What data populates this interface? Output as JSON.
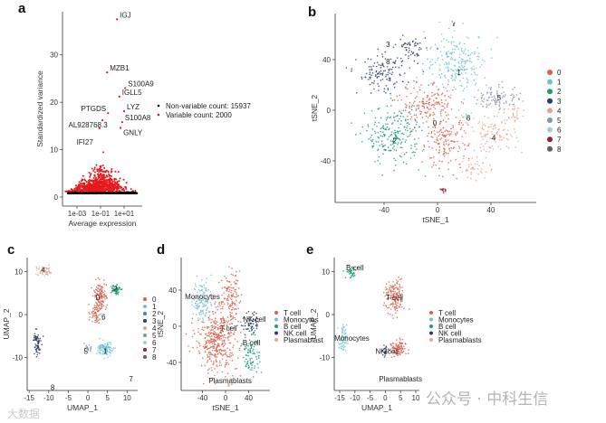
{
  "chart_data": [
    {
      "panel": "a",
      "type": "scatter",
      "xlabel": "Average expression",
      "ylabel": "Standardized variance",
      "xscale": "log10",
      "xlim": [
        -4.23,
        2.54
      ],
      "ylim": [
        -1.9,
        39.1
      ],
      "xticks": [
        {
          "v": -3,
          "label": "1e-03"
        },
        {
          "v": -1,
          "label": "1e-01"
        },
        {
          "v": 1,
          "label": "1e+01"
        }
      ],
      "yticks": [
        {
          "v": 0,
          "label": "0"
        },
        {
          "v": 10,
          "label": "10"
        },
        {
          "v": 20,
          "label": "20"
        },
        {
          "v": 30,
          "label": "30"
        }
      ],
      "legend": [
        {
          "label": "Non-variable count: 15937",
          "color": "#000000"
        },
        {
          "label": "Variable count: 2000",
          "color": "#e41a1c"
        }
      ],
      "legend_position": "right",
      "labeled_genes": [
        {
          "gene": "IGJ",
          "x": 0.4,
          "y": 37.5
        },
        {
          "gene": "MZB1",
          "x": -0.44,
          "y": 26.3
        },
        {
          "gene": "S100A9",
          "x": 1.1,
          "y": 23.0
        },
        {
          "gene": "IGLL5",
          "x": 0.6,
          "y": 21.2
        },
        {
          "gene": "LYZ",
          "x": 1.0,
          "y": 18.1
        },
        {
          "gene": "PTGDS",
          "x": -0.36,
          "y": 17.7
        },
        {
          "gene": "S100A8",
          "x": 0.84,
          "y": 15.8
        },
        {
          "gene": "AL928768.3",
          "x": -0.84,
          "y": 16.2
        },
        {
          "gene": "IFI27",
          "x": -1.1,
          "y": 14.5
        },
        {
          "gene": "GNLY",
          "x": 0.7,
          "y": 14.6
        }
      ]
    },
    {
      "panel": "b",
      "type": "scatter",
      "xlabel": "tSNE_1",
      "ylabel": "tSNE_2",
      "xlim": [
        -76.6,
        73.9
      ],
      "ylim": [
        -72.9,
        76.4
      ],
      "xticks": [
        {
          "v": -40,
          "label": "-40"
        },
        {
          "v": 0,
          "label": "0"
        },
        {
          "v": 40,
          "label": "40"
        }
      ],
      "yticks": [
        {
          "v": -40,
          "label": "-40"
        },
        {
          "v": 0,
          "label": "0"
        },
        {
          "v": 40,
          "label": "40"
        }
      ],
      "legend": [
        {
          "label": "0",
          "color": "#d6604d"
        },
        {
          "label": "1",
          "color": "#6cc3d5"
        },
        {
          "label": "2",
          "color": "#1b9e77"
        },
        {
          "label": "3",
          "color": "#2d3d6b"
        },
        {
          "label": "4",
          "color": "#e8a58c"
        },
        {
          "label": "5",
          "color": "#8a8fb5"
        },
        {
          "label": "6",
          "color": "#9ed3c9"
        },
        {
          "label": "7",
          "color": "#a01a24"
        },
        {
          "label": "8",
          "color": "#6b5a55"
        }
      ],
      "blobs": [
        {
          "g": 0,
          "x": -8,
          "y": 5,
          "sx": 13,
          "sy": 10,
          "n": 160
        },
        {
          "g": 0,
          "x": 5,
          "y": -25,
          "sx": 11,
          "sy": 14,
          "n": 170
        },
        {
          "g": 1,
          "x": 15,
          "y": 38,
          "sx": 15,
          "sy": 14,
          "n": 220
        },
        {
          "g": 2,
          "x": -33,
          "y": -20,
          "sx": 13,
          "sy": 14,
          "n": 220
        },
        {
          "g": 3,
          "x": -42,
          "y": 28,
          "sx": 11,
          "sy": 9,
          "n": 120
        },
        {
          "g": 3,
          "x": -20,
          "y": 48,
          "sx": 7,
          "sy": 8,
          "n": 60
        },
        {
          "g": 4,
          "x": 42,
          "y": -20,
          "sx": 11,
          "sy": 8,
          "n": 100
        },
        {
          "g": 4,
          "x": 28,
          "y": -45,
          "sx": 7,
          "sy": 6,
          "n": 40
        },
        {
          "g": 4,
          "x": 58,
          "y": -3,
          "sx": 5,
          "sy": 5,
          "n": 30
        },
        {
          "g": 5,
          "x": 45,
          "y": 10,
          "sx": 11,
          "sy": 6,
          "n": 90
        },
        {
          "g": 6,
          "x": 23,
          "y": -6,
          "sx": 2,
          "sy": 2,
          "n": 15
        },
        {
          "g": 7,
          "x": 5,
          "y": -63,
          "sx": 1.5,
          "sy": 1,
          "n": 12
        },
        {
          "g": 8,
          "x": 12,
          "y": 68,
          "sx": 1,
          "sy": 1,
          "n": 6
        }
      ],
      "cluster_labels": [
        {
          "label": "0",
          "x": -2,
          "y": -10
        },
        {
          "label": "1",
          "x": 16,
          "y": 30
        },
        {
          "label": "2",
          "x": -32,
          "y": -24
        },
        {
          "label": "3",
          "x": -37,
          "y": 52
        },
        {
          "label": "4",
          "x": 42,
          "y": -22
        },
        {
          "label": "5",
          "x": 46,
          "y": 10
        },
        {
          "label": "6",
          "x": 23,
          "y": -6
        },
        {
          "label": "8",
          "x": -37,
          "y": 53
        }
      ]
    },
    {
      "panel": "c",
      "type": "scatter",
      "xlabel": "UMAP_1",
      "ylabel": "UMAP_2",
      "xlim": [
        -15.5,
        12.7
      ],
      "ylim": [
        -17.7,
        13.3
      ],
      "xticks": [
        {
          "v": -15,
          "label": "-15"
        },
        {
          "v": -10,
          "label": "-10"
        },
        {
          "v": -5,
          "label": "-5"
        },
        {
          "v": 0,
          "label": "0"
        },
        {
          "v": 5,
          "label": "5"
        },
        {
          "v": 10,
          "label": "10"
        }
      ],
      "yticks": [
        {
          "v": -10,
          "label": "-10"
        },
        {
          "v": 0,
          "label": "0"
        },
        {
          "v": 10,
          "label": "10"
        }
      ],
      "legend": [
        {
          "label": "0",
          "color": "#d6604d"
        },
        {
          "label": "1",
          "color": "#6cc3d5"
        },
        {
          "label": "2",
          "color": "#1b9e77"
        },
        {
          "label": "3",
          "color": "#2d3d6b"
        },
        {
          "label": "4",
          "color": "#e8a58c"
        },
        {
          "label": "5",
          "color": "#8a8fb5"
        },
        {
          "label": "6",
          "color": "#9ed3c9"
        },
        {
          "label": "7",
          "color": "#a01a24"
        },
        {
          "label": "8",
          "color": "#6b5a55"
        }
      ],
      "blobs": [
        {
          "g": 4,
          "x": -11,
          "y": 10,
          "sx": 1.4,
          "sy": 0.8,
          "n": 45
        },
        {
          "g": 0,
          "x": 3,
          "y": 4,
          "sx": 1.1,
          "sy": 2.2,
          "n": 140
        },
        {
          "g": 0,
          "x": 2,
          "y": 0,
          "sx": 0.8,
          "sy": 1.2,
          "n": 40
        },
        {
          "g": 2,
          "x": 7,
          "y": 6,
          "sx": 0.8,
          "sy": 0.8,
          "n": 60
        },
        {
          "g": 3,
          "x": -13,
          "y": -7,
          "sx": 0.6,
          "sy": 2,
          "n": 60
        },
        {
          "g": 1,
          "x": 4.5,
          "y": -8,
          "sx": 1.2,
          "sy": 1,
          "n": 110
        },
        {
          "g": 5,
          "x": 0,
          "y": -8,
          "sx": 0.5,
          "sy": 0.5,
          "n": 20
        },
        {
          "g": 6,
          "x": 3,
          "y": 0,
          "sx": 0.3,
          "sy": 0.3,
          "n": 8
        }
      ],
      "cluster_labels": [
        {
          "label": "0",
          "x": 2.5,
          "y": 4
        },
        {
          "label": "1",
          "x": 4.5,
          "y": -8.5
        },
        {
          "label": "2",
          "x": 7,
          "y": 6
        },
        {
          "label": "3",
          "x": -13.5,
          "y": -5.5
        },
        {
          "label": "4",
          "x": -11.5,
          "y": 10.5
        },
        {
          "label": "5",
          "x": -0.5,
          "y": -8.5
        },
        {
          "label": "6",
          "x": 4,
          "y": -0.5
        },
        {
          "label": "7",
          "x": 11,
          "y": -15
        },
        {
          "label": "8",
          "x": -9,
          "y": -17
        }
      ]
    },
    {
      "panel": "d",
      "type": "scatter",
      "xlabel": "tSNE_1",
      "ylabel": "tSNE_2",
      "xlim": [
        -76.9,
        76.9
      ],
      "ylim": [
        -71,
        76
      ],
      "xticks": [
        {
          "v": -40,
          "label": "-40"
        },
        {
          "v": 0,
          "label": "0"
        },
        {
          "v": 40,
          "label": "40"
        }
      ],
      "yticks": [
        {
          "v": -40,
          "label": "-40"
        },
        {
          "v": 0,
          "label": "0"
        },
        {
          "v": 40,
          "label": "40"
        }
      ],
      "legend": [
        {
          "label": "T cell",
          "color": "#d6604d"
        },
        {
          "label": "Monocytes",
          "color": "#6cc3d5"
        },
        {
          "label": "B cell",
          "color": "#1b9e77"
        },
        {
          "label": "NK cell",
          "color": "#2d3d6b"
        },
        {
          "label": "Plasmablast",
          "color": "#e8a58c"
        }
      ],
      "blobs": [
        {
          "g": 0,
          "x": -15,
          "y": -15,
          "sx": 22,
          "sy": 22,
          "n": 420
        },
        {
          "g": 0,
          "x": 8,
          "y": 35,
          "sx": 10,
          "sy": 15,
          "n": 110
        },
        {
          "g": 1,
          "x": -40,
          "y": 28,
          "sx": 10,
          "sy": 15,
          "n": 110
        },
        {
          "g": 3,
          "x": 45,
          "y": 5,
          "sx": 8,
          "sy": 8,
          "n": 60
        },
        {
          "g": 2,
          "x": 45,
          "y": -30,
          "sx": 9,
          "sy": 15,
          "n": 90
        },
        {
          "g": 4,
          "x": 5,
          "y": -65,
          "sx": 1.5,
          "sy": 1,
          "n": 8
        }
      ],
      "cluster_labels": [
        {
          "label": "Monocytes",
          "x": -40,
          "y": 33
        },
        {
          "label": "T cell",
          "x": 5,
          "y": -2
        },
        {
          "label": "NK cell",
          "x": 50,
          "y": 8
        },
        {
          "label": "B cell",
          "x": 45,
          "y": -18
        },
        {
          "label": "Plasmablasts",
          "x": 8,
          "y": -60
        }
      ]
    },
    {
      "panel": "e",
      "type": "scatter",
      "xlabel": "UMAP_1",
      "ylabel": "UMAP_2",
      "xlim": [
        -16.8,
        11.2
      ],
      "ylim": [
        -17.7,
        13.3
      ],
      "xticks": [
        {
          "v": -15,
          "label": "-15"
        },
        {
          "v": -10,
          "label": "-10"
        },
        {
          "v": -5,
          "label": "-5"
        },
        {
          "v": 0,
          "label": "0"
        },
        {
          "v": 5,
          "label": "5"
        },
        {
          "v": 10,
          "label": "10"
        }
      ],
      "yticks": [
        {
          "v": -10,
          "label": "-10"
        },
        {
          "v": 0,
          "label": "0"
        },
        {
          "v": 10,
          "label": "10"
        }
      ],
      "legend": [
        {
          "label": "T cell",
          "color": "#d6604d"
        },
        {
          "label": "Monocytes",
          "color": "#6cc3d5"
        },
        {
          "label": "B cell",
          "color": "#1b9e77"
        },
        {
          "label": "NK cell",
          "color": "#2d3d6b"
        },
        {
          "label": "Plasmablasts",
          "color": "#e8a58c"
        }
      ],
      "blobs": [
        {
          "g": 2,
          "x": -11,
          "y": 10,
          "sx": 1.2,
          "sy": 1,
          "n": 40
        },
        {
          "g": 0,
          "x": 3,
          "y": 4,
          "sx": 2,
          "sy": 2.5,
          "n": 150
        },
        {
          "g": 0,
          "x": 4,
          "y": -8,
          "sx": 1.6,
          "sy": 1.3,
          "n": 100
        },
        {
          "g": 1,
          "x": -14,
          "y": -6,
          "sx": 0.8,
          "sy": 2.2,
          "n": 60
        },
        {
          "g": 3,
          "x": 0,
          "y": -8.5,
          "sx": 0.6,
          "sy": 0.8,
          "n": 25
        }
      ],
      "cluster_labels": [
        {
          "label": "B cell",
          "x": -10,
          "y": 11
        },
        {
          "label": "T cell",
          "x": 3,
          "y": 4
        },
        {
          "label": "Monocytes",
          "x": -11,
          "y": -5.5
        },
        {
          "label": "NK cell",
          "x": 0.5,
          "y": -8.5
        },
        {
          "label": "Plasmablasts",
          "x": 5,
          "y": -15
        }
      ]
    }
  ],
  "watermarks": {
    "left": "大数据",
    "right": "公众号 · 中科生信"
  }
}
